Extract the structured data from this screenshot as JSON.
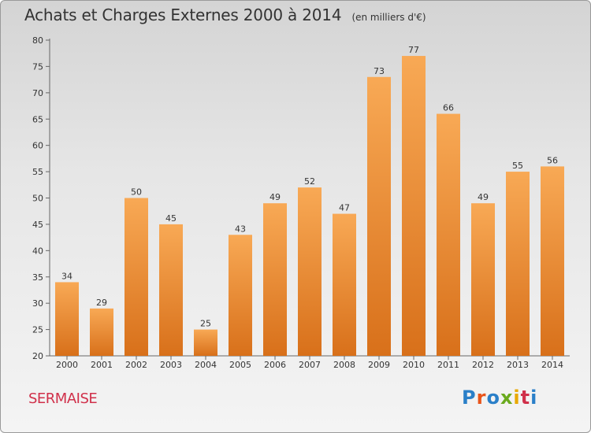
{
  "header": {
    "title": "Achats et Charges Externes 2000 à 2014",
    "subtitle": "(en milliers d'€)"
  },
  "footer": {
    "commune": "SERMAISE",
    "logo_text": "Proxiti",
    "logo_colors": [
      "#2a7fc8",
      "#e8541a",
      "#2a7fc8",
      "#6aaa1e",
      "#e8a800",
      "#d0304a",
      "#2a7fc8"
    ]
  },
  "chart_data": {
    "type": "bar",
    "categories": [
      "2000",
      "2001",
      "2002",
      "2003",
      "2004",
      "2005",
      "2006",
      "2007",
      "2008",
      "2009",
      "2010",
      "2011",
      "2012",
      "2013",
      "2014"
    ],
    "values": [
      34,
      29,
      50,
      45,
      25,
      43,
      49,
      52,
      47,
      73,
      77,
      66,
      49,
      55,
      56
    ],
    "title": "Achats et Charges Externes 2000 à 2014",
    "subtitle": "(en milliers d'€)",
    "xlabel": "",
    "ylabel": "",
    "ylim": [
      20,
      80
    ],
    "yticks": [
      20,
      25,
      30,
      35,
      40,
      45,
      50,
      55,
      60,
      65,
      70,
      75,
      80
    ],
    "grid": false,
    "data_labels": true,
    "bar_color": "#f0923a"
  }
}
